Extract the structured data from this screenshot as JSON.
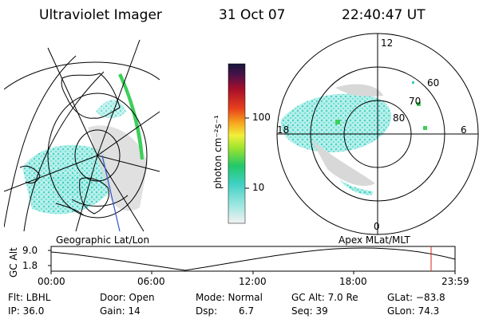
{
  "header": {
    "title": "Ultraviolet Imager",
    "date": "31 Oct 07",
    "time": "22:40:47 UT"
  },
  "colorbar": {
    "label": "photon cm⁻²s⁻¹",
    "ticks": [
      "100",
      "10"
    ]
  },
  "polar_plot": {
    "lat_labels": [
      "60",
      "70",
      "80"
    ],
    "mlt_labels": [
      "12",
      "18",
      "6",
      "0"
    ]
  },
  "timeline": {
    "left_label": "Geographic Lat/Lon",
    "right_label": "Apex MLat/MLT",
    "axis_title": "GC Alt",
    "y_ticks": [
      "9.0",
      "1.8"
    ],
    "x_ticks": [
      "00:00",
      "06:00",
      "12:00",
      "18:00",
      "23:59"
    ],
    "current_marker_color": "#d9261c"
  },
  "info": {
    "filter": "Flt: LBHL",
    "ip": "IP: 36.0",
    "door": "Door: Open",
    "gain": "Gain: 14",
    "mode": "Mode: Normal",
    "dsp_label": "Dsp:",
    "dsp_value": "6.7",
    "gc_alt": "GC Alt: 7.0 Re",
    "seq": "Seq: 39",
    "glat": "GLat: −83.8",
    "glon": "GLon:  74.3"
  }
}
